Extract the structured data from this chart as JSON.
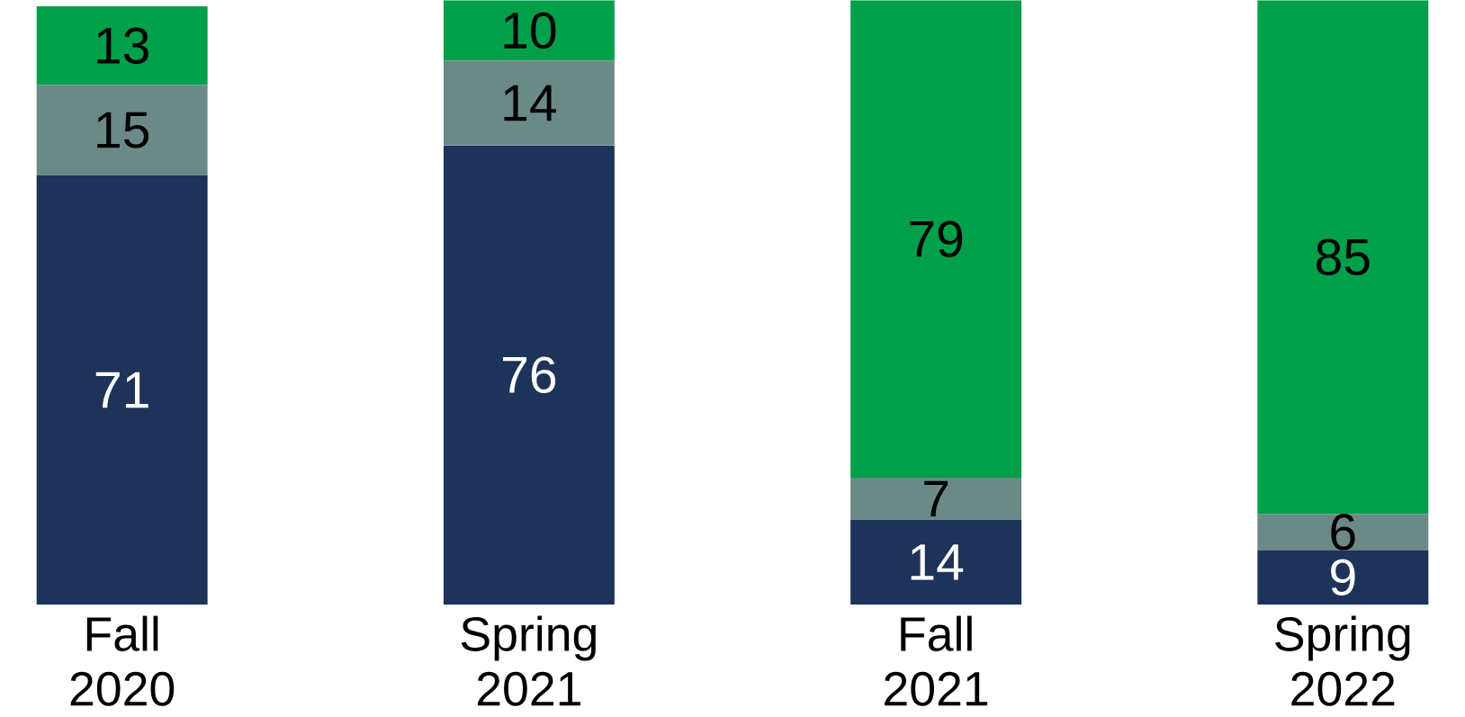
{
  "chart_data": {
    "type": "bar",
    "stacked": true,
    "data_labels": true,
    "categories": [
      "Fall 2020",
      "Spring 2021",
      "Fall 2021",
      "Spring 2022"
    ],
    "series": [
      {
        "color": "#1d3359",
        "values": [
          71,
          76,
          14,
          9
        ]
      },
      {
        "color": "#6b8a87",
        "values": [
          15,
          14,
          7,
          6
        ]
      },
      {
        "color": "#00a04b",
        "values": [
          13,
          10,
          79,
          85
        ]
      }
    ]
  }
}
